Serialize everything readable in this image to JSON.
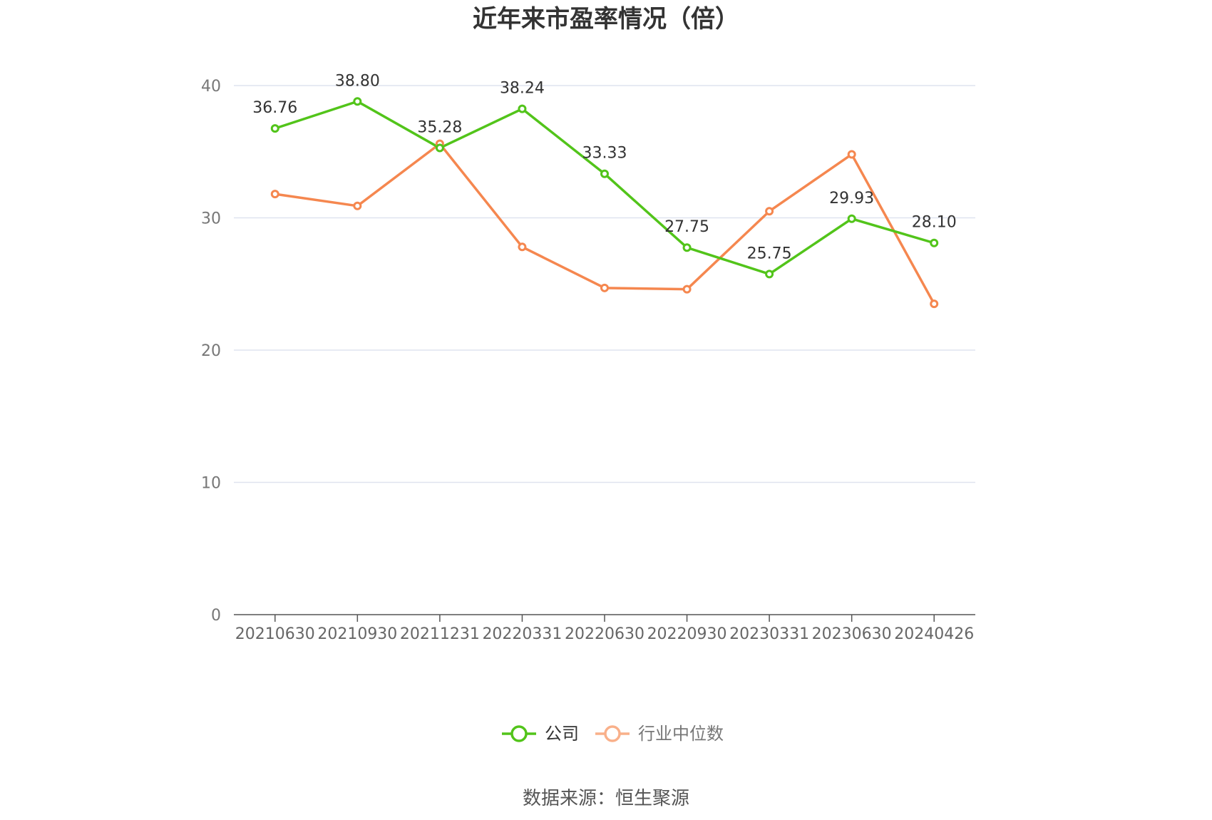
{
  "chart_data": {
    "type": "line",
    "title": "近年来市盈率情况（倍）",
    "categories": [
      "20210630",
      "20210930",
      "20211231",
      "20220331",
      "20220630",
      "20220930",
      "20230331",
      "20230630",
      "20240426"
    ],
    "ylim": [
      0,
      40
    ],
    "yticks": [
      "0",
      "10",
      "20",
      "30",
      "40"
    ],
    "grid": true,
    "legend_position": "bottom-center",
    "series": [
      {
        "name": "公司",
        "color": "#52c41a",
        "values": [
          36.76,
          38.8,
          35.28,
          38.24,
          33.33,
          27.75,
          25.75,
          29.93,
          28.1
        ],
        "labels": [
          "36.76",
          "38.80",
          "35.28",
          "38.24",
          "33.33",
          "27.75",
          "25.75",
          "29.93",
          "28.10"
        ]
      },
      {
        "name": "行业中位数",
        "color": "#f5874f",
        "values": [
          31.8,
          30.9,
          35.6,
          27.8,
          24.7,
          24.6,
          30.5,
          34.8,
          23.5
        ]
      }
    ]
  },
  "source": "数据来源：恒生聚源"
}
